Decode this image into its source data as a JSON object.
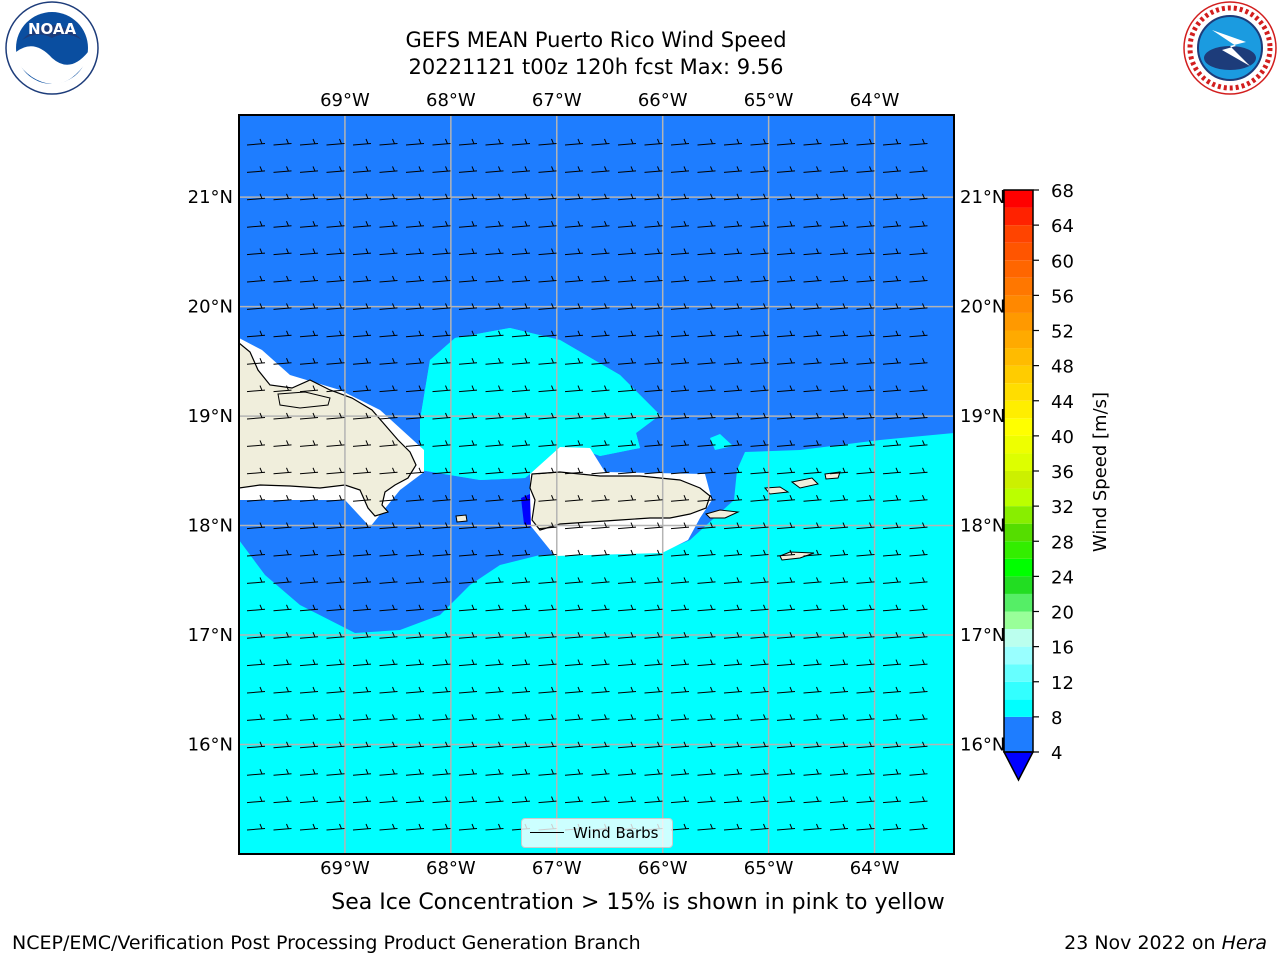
{
  "title_line1": "GEFS MEAN Puerto Rico Wind Speed",
  "title_line2": "20221121 t00z 120h fcst   Max: 9.56",
  "subtitle": "Sea Ice Concentration > 15% is shown in pink to yellow",
  "footer_left": "NCEP/EMC/Verification Post Processing Product Generation Branch",
  "footer_date": "23 Nov 2022 on ",
  "footer_host": "Hera",
  "logos": {
    "noaa_text": "NOAA",
    "noaa_ring_text": "NATIONAL OCEANIC AND ATMOSPHERIC ADMINISTRATION · U.S. DEPARTMENT OF COMMERCE",
    "nws_ring_text": "NATIONAL WEATHER SERVICE"
  },
  "map": {
    "lon_range": [
      -70.0,
      -63.25
    ],
    "lat_range": [
      15.0,
      21.75
    ],
    "lon_ticks": [
      {
        "value": -69,
        "label": "69°W"
      },
      {
        "value": -68,
        "label": "68°W"
      },
      {
        "value": -67,
        "label": "67°W"
      },
      {
        "value": -66,
        "label": "66°W"
      },
      {
        "value": -65,
        "label": "65°W"
      },
      {
        "value": -64,
        "label": "64°W"
      }
    ],
    "lat_ticks": [
      {
        "value": 16,
        "label": "16°N"
      },
      {
        "value": 17,
        "label": "17°N"
      },
      {
        "value": 18,
        "label": "18°N"
      },
      {
        "value": 19,
        "label": "19°N"
      },
      {
        "value": 20,
        "label": "20°N"
      },
      {
        "value": 21,
        "label": "21°N"
      }
    ],
    "grid": true,
    "legend_label": "Wind Barbs"
  },
  "colorbar": {
    "label": "Wind Speed [m/s]",
    "unit": "m/s",
    "levels": [
      4,
      8,
      10,
      12,
      14,
      16,
      18,
      20,
      22,
      24,
      26,
      28,
      30,
      32,
      34,
      36,
      38,
      40,
      42,
      44,
      46,
      48,
      50,
      52,
      54,
      56,
      58,
      60,
      62,
      64,
      66,
      68
    ],
    "colors": [
      "#1e7dff",
      "#00ffff",
      "#33ffff",
      "#66ffff",
      "#99ffff",
      "#bbffee",
      "#99ff99",
      "#55ee66",
      "#22dd22",
      "#00ff00",
      "#33ee00",
      "#55dd00",
      "#88ee00",
      "#bbff00",
      "#ccf000",
      "#ddff00",
      "#eeff00",
      "#ffff00",
      "#ffee00",
      "#ffdd00",
      "#ffcc00",
      "#ffbb00",
      "#ffaa00",
      "#ff9900",
      "#ff8800",
      "#ff7700",
      "#ff6600",
      "#ff5500",
      "#ff4400",
      "#ff2200",
      "#ff0000"
    ],
    "tick_labels": [
      {
        "value": 4,
        "label": "4"
      },
      {
        "value": 8,
        "label": "8"
      },
      {
        "value": 12,
        "label": "12"
      },
      {
        "value": 16,
        "label": "16"
      },
      {
        "value": 20,
        "label": "20"
      },
      {
        "value": 24,
        "label": "24"
      },
      {
        "value": 28,
        "label": "28"
      },
      {
        "value": 32,
        "label": "32"
      },
      {
        "value": 36,
        "label": "36"
      },
      {
        "value": 40,
        "label": "40"
      },
      {
        "value": 44,
        "label": "44"
      },
      {
        "value": 48,
        "label": "48"
      },
      {
        "value": 52,
        "label": "52"
      },
      {
        "value": 56,
        "label": "56"
      },
      {
        "value": 60,
        "label": "60"
      },
      {
        "value": 64,
        "label": "64"
      },
      {
        "value": 68,
        "label": "68"
      }
    ],
    "under_color": "#0000ff"
  },
  "colors": {
    "wind_4_8": "#1e7dff",
    "wind_8_12": "#00ffff",
    "land": "#f0eedc",
    "grid": "#b4b4b4"
  }
}
